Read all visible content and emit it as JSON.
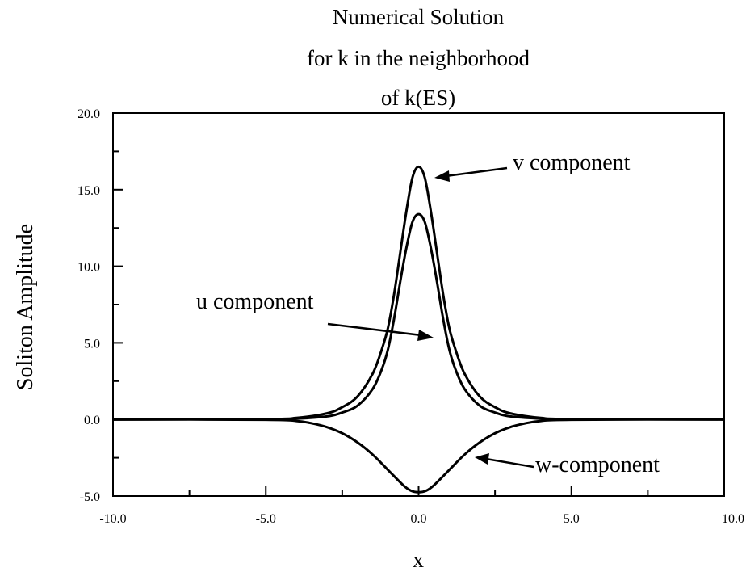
{
  "chart_data": {
    "type": "line",
    "title_lines": [
      "Numerical Solution",
      "for k in the neighborhood",
      "of k(ES)"
    ],
    "xlabel": "x",
    "ylabel": "Soliton Amplitude",
    "xlim": [
      -10,
      10
    ],
    "ylim": [
      -5,
      20
    ],
    "x_ticks": [
      -10,
      -5,
      0,
      5,
      10
    ],
    "x_tick_labels": [
      "-10.0",
      "-5.0",
      "0.0",
      "5.0",
      "10.0"
    ],
    "y_ticks": [
      -5,
      0,
      5,
      10,
      15,
      20
    ],
    "y_tick_labels": [
      "-5.0",
      "0.0",
      "5.0",
      "10.0",
      "15.0",
      "20.0"
    ],
    "grid": false,
    "series": [
      {
        "name": "v component",
        "x": [
          -10,
          -5,
          -4,
          -3,
          -2.5,
          -2,
          -1.5,
          -1.2,
          -1,
          -0.8,
          -0.6,
          -0.4,
          -0.2,
          0,
          0.2,
          0.4,
          0.6,
          0.8,
          1,
          1.2,
          1.5,
          2,
          2.5,
          3,
          4,
          5,
          10
        ],
        "y": [
          0,
          0.03,
          0.1,
          0.4,
          0.8,
          1.5,
          3.0,
          4.6,
          6.0,
          8.2,
          10.9,
          13.6,
          15.8,
          16.5,
          15.8,
          13.6,
          10.9,
          8.2,
          6.0,
          4.6,
          3.0,
          1.5,
          0.8,
          0.4,
          0.1,
          0.03,
          0
        ]
      },
      {
        "name": "u component",
        "x": [
          -10,
          -5,
          -4,
          -3,
          -2.5,
          -2,
          -1.5,
          -1.2,
          -1,
          -0.8,
          -0.6,
          -0.4,
          -0.2,
          0,
          0.2,
          0.4,
          0.6,
          0.8,
          1,
          1.2,
          1.5,
          2,
          2.5,
          3,
          4,
          5,
          10
        ],
        "y": [
          0,
          0.02,
          0.05,
          0.2,
          0.45,
          0.9,
          2.0,
          3.3,
          4.6,
          6.6,
          9.0,
          11.2,
          12.9,
          13.4,
          12.9,
          11.2,
          9.0,
          6.6,
          4.6,
          3.3,
          2.0,
          0.9,
          0.45,
          0.2,
          0.05,
          0.02,
          0
        ]
      },
      {
        "name": "w-component",
        "x": [
          -10,
          -5,
          -4,
          -3.5,
          -3,
          -2.5,
          -2,
          -1.5,
          -1,
          -0.5,
          -0.25,
          0,
          0.25,
          0.5,
          1,
          1.5,
          2,
          2.5,
          3,
          3.5,
          4,
          5,
          10
        ],
        "y": [
          0,
          -0.02,
          -0.1,
          -0.25,
          -0.5,
          -0.9,
          -1.5,
          -2.3,
          -3.3,
          -4.3,
          -4.65,
          -4.75,
          -4.65,
          -4.3,
          -3.3,
          -2.3,
          -1.5,
          -0.9,
          -0.5,
          -0.25,
          -0.1,
          -0.02,
          0
        ]
      }
    ],
    "annotations": [
      {
        "text": "v component",
        "series": "v component"
      },
      {
        "text": "u component",
        "series": "u component"
      },
      {
        "text": "w-component",
        "series": "w-component"
      }
    ]
  }
}
